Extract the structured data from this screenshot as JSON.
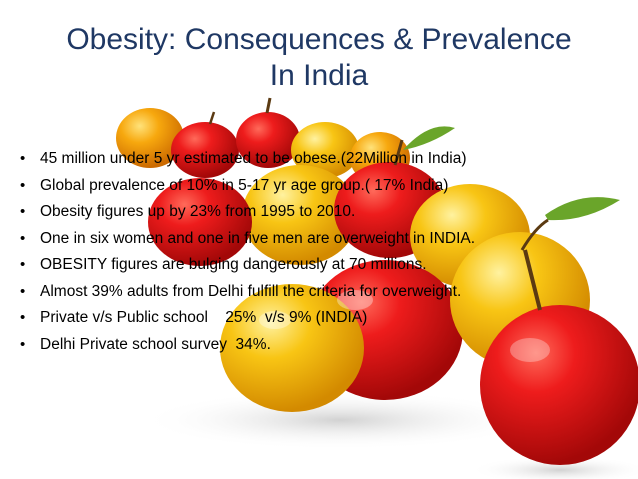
{
  "slide": {
    "title_line1": "Obesity: Consequences & Prevalence",
    "title_line2": "In India",
    "bullet_symbol": "•",
    "bullets": [
      "45 million under 5 yr estimated to be obese.(22Million in India)",
      "Global prevalence of 10% in 5-17 yr age group.( 17% India)",
      "Obesity figures up by 23% from 1995 to 2010.",
      "One in six women and one in five men are overweight in INDIA.",
      "OBESITY figures are bulging dangerously at 70 millions.",
      "Almost 39% adults from Delhi fulfill the criteria for overweight.",
      "Private v/s Public school    25%  v/s 9% (INDIA)",
      "Delhi Private school survey  34%."
    ]
  },
  "colors": {
    "title": "#1f3864",
    "text": "#000000",
    "apple_red": "#e0141a",
    "apple_orange": "#f5a50c",
    "apple_yellow": "#f7c80f"
  }
}
